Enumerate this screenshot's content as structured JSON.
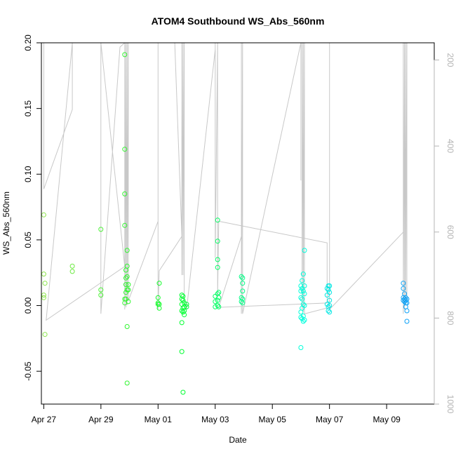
{
  "chart_data": {
    "type": "scatter",
    "title": "ATOM4 Southbound WS_Abs_560nm",
    "xlabel": "Date",
    "ylabel": "WS_Abs_560nm",
    "x_range": [
      "2023-04-26T22:00",
      "2023-05-10T16:00"
    ],
    "ylim": [
      -0.075,
      0.2
    ],
    "x_ticks": [
      {
        "date": "2023-04-27",
        "label": "Apr 27"
      },
      {
        "date": "2023-04-29",
        "label": "Apr 29"
      },
      {
        "date": "2023-05-01",
        "label": "May 01"
      },
      {
        "date": "2023-05-03",
        "label": "May 03"
      },
      {
        "date": "2023-05-05",
        "label": "May 05"
      },
      {
        "date": "2023-05-07",
        "label": "May 07"
      },
      {
        "date": "2023-05-09",
        "label": "May 09"
      }
    ],
    "y_ticks": [
      {
        "value": -0.05,
        "label": "-0.05"
      },
      {
        "value": 0.0,
        "label": "0.00"
      },
      {
        "value": 0.05,
        "label": "0.05"
      },
      {
        "value": 0.1,
        "label": "0.10"
      },
      {
        "value": 0.15,
        "label": "0.15"
      },
      {
        "value": 0.2,
        "label": "0.20"
      }
    ],
    "secondary_axis": {
      "range": [
        1000,
        160
      ],
      "ticks": [
        {
          "value": 200,
          "label": "200"
        },
        {
          "value": 400,
          "label": "400"
        },
        {
          "value": 600,
          "label": "600"
        },
        {
          "value": 800,
          "label": "800"
        },
        {
          "value": 1000,
          "label": "1000"
        }
      ],
      "color": "#b4b4b4"
    },
    "grid": false,
    "legend": "none",
    "point_color_scale": [
      "#8ee44a",
      "#00ff22",
      "#00ffdd",
      "#1188ff"
    ],
    "points": [
      [
        "2023-04-27T00:00",
        0.069
      ],
      [
        "2023-04-27T00:00",
        0.024
      ],
      [
        "2023-04-27T00:00",
        0.008
      ],
      [
        "2023-04-27T00:00",
        0.006
      ],
      [
        "2023-04-27T01:00",
        0.017
      ],
      [
        "2023-04-27T01:00",
        -0.022
      ],
      [
        "2023-04-28T00:00",
        0.03
      ],
      [
        "2023-04-28T00:00",
        0.026
      ],
      [
        "2023-04-29T00:00",
        0.058
      ],
      [
        "2023-04-29T00:00",
        0.012
      ],
      [
        "2023-04-29T00:00",
        0.008
      ],
      [
        "2023-04-29T20:00",
        0.191
      ],
      [
        "2023-04-29T20:00",
        0.119
      ],
      [
        "2023-04-29T20:00",
        0.085
      ],
      [
        "2023-04-29T20:00",
        0.061
      ],
      [
        "2023-04-29T20:00",
        0.005
      ],
      [
        "2023-04-29T20:00",
        0.002
      ],
      [
        "2023-04-29T21:00",
        0.027
      ],
      [
        "2023-04-29T21:00",
        0.021
      ],
      [
        "2023-04-29T21:00",
        0.016
      ],
      [
        "2023-04-29T21:00",
        0.01
      ],
      [
        "2023-04-29T21:00",
        0.005
      ],
      [
        "2023-04-29T22:00",
        0.042
      ],
      [
        "2023-04-29T22:00",
        0.03
      ],
      [
        "2023-04-29T22:00",
        0.022
      ],
      [
        "2023-04-29T22:00",
        0.012
      ],
      [
        "2023-04-29T22:00",
        -0.016
      ],
      [
        "2023-04-29T22:00",
        -0.059
      ],
      [
        "2023-04-29T23:00",
        0.016
      ],
      [
        "2023-04-29T23:00",
        0.012
      ],
      [
        "2023-04-29T23:00",
        0.003
      ],
      [
        "2023-05-01T00:00",
        0.006
      ],
      [
        "2023-05-01T00:00",
        0.002
      ],
      [
        "2023-05-01T00:00",
        0.001
      ],
      [
        "2023-05-01T01:00",
        0.017
      ],
      [
        "2023-05-01T01:00",
        0.001
      ],
      [
        "2023-05-01T01:00",
        -0.002
      ],
      [
        "2023-05-01T20:00",
        0.008
      ],
      [
        "2023-05-01T20:00",
        0.005
      ],
      [
        "2023-05-01T20:00",
        0.001
      ],
      [
        "2023-05-01T20:00",
        -0.004
      ],
      [
        "2023-05-01T20:00",
        -0.013
      ],
      [
        "2023-05-01T20:00",
        -0.035
      ],
      [
        "2023-05-01T21:00",
        0.007
      ],
      [
        "2023-05-01T21:00",
        0.004
      ],
      [
        "2023-05-01T21:00",
        -0.002
      ],
      [
        "2023-05-01T21:00",
        -0.005
      ],
      [
        "2023-05-01T21:00",
        -0.066
      ],
      [
        "2023-05-01T22:00",
        0.002
      ],
      [
        "2023-05-01T22:00",
        -0.001
      ],
      [
        "2023-05-01T22:00",
        -0.004
      ],
      [
        "2023-05-01T22:00",
        -0.007
      ],
      [
        "2023-05-02T00:00",
        0.001
      ],
      [
        "2023-05-02T00:00",
        -0.001
      ],
      [
        "2023-05-03T00:00",
        0.007
      ],
      [
        "2023-05-03T00:00",
        0.003
      ],
      [
        "2023-05-03T00:00",
        -0.001
      ],
      [
        "2023-05-03T02:00",
        0.065
      ],
      [
        "2023-05-03T02:00",
        0.049
      ],
      [
        "2023-05-03T02:00",
        0.035
      ],
      [
        "2023-05-03T02:00",
        0.029
      ],
      [
        "2023-05-03T02:00",
        0.009
      ],
      [
        "2023-05-03T02:00",
        0.004
      ],
      [
        "2023-05-03T02:00",
        0.0
      ],
      [
        "2023-05-03T03:00",
        0.01
      ],
      [
        "2023-05-03T03:00",
        0.006
      ],
      [
        "2023-05-03T03:00",
        -0.001
      ],
      [
        "2023-05-03T22:00",
        0.022
      ],
      [
        "2023-05-03T22:00",
        0.006
      ],
      [
        "2023-05-03T22:00",
        0.003
      ],
      [
        "2023-05-03T23:00",
        0.021
      ],
      [
        "2023-05-03T23:00",
        0.017
      ],
      [
        "2023-05-03T23:00",
        0.011
      ],
      [
        "2023-05-03T23:00",
        0.005
      ],
      [
        "2023-05-03T23:00",
        0.002
      ],
      [
        "2023-05-06T00:00",
        0.015
      ],
      [
        "2023-05-06T00:00",
        0.011
      ],
      [
        "2023-05-06T00:00",
        0.006
      ],
      [
        "2023-05-06T00:00",
        -0.005
      ],
      [
        "2023-05-06T00:00",
        -0.009
      ],
      [
        "2023-05-06T00:00",
        -0.032
      ],
      [
        "2023-05-06T01:00",
        0.019
      ],
      [
        "2023-05-06T01:00",
        0.013
      ],
      [
        "2023-05-06T01:00",
        0.005
      ],
      [
        "2023-05-06T01:00",
        -0.002
      ],
      [
        "2023-05-06T01:00",
        -0.01
      ],
      [
        "2023-05-06T02:00",
        0.024
      ],
      [
        "2023-05-06T02:00",
        0.011
      ],
      [
        "2023-05-06T02:00",
        0.001
      ],
      [
        "2023-05-06T02:00",
        -0.008
      ],
      [
        "2023-05-06T02:00",
        -0.012
      ],
      [
        "2023-05-06T03:00",
        0.042
      ],
      [
        "2023-05-06T03:00",
        0.015
      ],
      [
        "2023-05-06T03:00",
        0.009
      ],
      [
        "2023-05-06T03:00",
        0.0
      ],
      [
        "2023-05-06T03:00",
        -0.011
      ],
      [
        "2023-05-06T22:00",
        0.013
      ],
      [
        "2023-05-06T22:00",
        0.008
      ],
      [
        "2023-05-06T22:00",
        0.001
      ],
      [
        "2023-05-06T23:00",
        0.015
      ],
      [
        "2023-05-06T23:00",
        0.012
      ],
      [
        "2023-05-06T23:00",
        -0.001
      ],
      [
        "2023-05-06T23:00",
        -0.004
      ],
      [
        "2023-05-07T00:00",
        0.015
      ],
      [
        "2023-05-07T00:00",
        0.01
      ],
      [
        "2023-05-07T00:00",
        0.004
      ],
      [
        "2023-05-07T00:00",
        0.0
      ],
      [
        "2023-05-07T00:00",
        -0.005
      ],
      [
        "2023-05-09T14:00",
        0.017
      ],
      [
        "2023-05-09T14:00",
        0.013
      ],
      [
        "2023-05-09T14:00",
        0.006
      ],
      [
        "2023-05-09T14:00",
        0.004
      ],
      [
        "2023-05-09T15:00",
        0.009
      ],
      [
        "2023-05-09T15:00",
        0.005
      ],
      [
        "2023-05-09T15:00",
        0.003
      ],
      [
        "2023-05-09T16:00",
        0.006
      ],
      [
        "2023-05-09T16:00",
        0.004
      ],
      [
        "2023-05-09T16:00",
        0.002
      ],
      [
        "2023-05-09T16:00",
        -0.001
      ],
      [
        "2023-05-09T17:00",
        0.005
      ],
      [
        "2023-05-09T17:00",
        0.002
      ],
      [
        "2023-05-09T17:00",
        -0.004
      ],
      [
        "2023-05-09T17:00",
        -0.012
      ]
    ],
    "secondary_line": [
      [
        "2023-04-27T00:00",
        160
      ],
      [
        "2023-04-27T00:00",
        500
      ],
      [
        "2023-04-28T00:00",
        315
      ],
      [
        "2023-04-28T00:00",
        160
      ],
      [
        "2023-04-28T00:00",
        160
      ],
      [
        "2023-04-27T02:00",
        805
      ],
      [
        "2023-04-29T20:00",
        680
      ],
      [
        "2023-04-29T00:00",
        160
      ],
      [
        "2023-04-29T00:00",
        475
      ],
      [
        "2023-04-29T00:00",
        790
      ],
      [
        "2023-04-29T16:00",
        170
      ],
      [
        "2023-04-29T20:00",
        160
      ],
      [
        "2023-04-29T20:00",
        780
      ],
      [
        "2023-04-29T21:00",
        160
      ],
      [
        "2023-04-29T21:00",
        775
      ],
      [
        "2023-04-29T22:00",
        160
      ],
      [
        "2023-04-29T22:00",
        770
      ],
      [
        "2023-04-29T23:00",
        160
      ],
      [
        "2023-04-29T23:00",
        760
      ],
      [
        "2023-04-29T23:00",
        760
      ],
      [
        "2023-05-01T00:00",
        575
      ],
      [
        "2023-05-01T00:00",
        160
      ],
      [
        "2023-05-01T00:00",
        780
      ],
      [
        "2023-05-01T00:00",
        780
      ],
      [
        "2023-05-01T01:00",
        690
      ],
      [
        "2023-05-01T20:00",
        610
      ],
      [
        "2023-05-01T14:00",
        160
      ],
      [
        "2023-05-01T20:00",
        160
      ],
      [
        "2023-05-01T20:00",
        700
      ],
      [
        "2023-05-01T21:00",
        160
      ],
      [
        "2023-05-01T21:00",
        700
      ],
      [
        "2023-05-01T22:00",
        160
      ],
      [
        "2023-05-01T22:00",
        760
      ],
      [
        "2023-05-01T22:00",
        760
      ],
      [
        "2023-05-02T00:00",
        780
      ],
      [
        "2023-05-03T00:00",
        175
      ],
      [
        "2023-05-03T00:00",
        160
      ],
      [
        "2023-05-03T00:00",
        660
      ],
      [
        "2023-05-03T02:00",
        160
      ],
      [
        "2023-05-03T02:00",
        750
      ],
      [
        "2023-05-03T02:00",
        750
      ],
      [
        "2023-05-03T03:00",
        575
      ],
      [
        "2023-05-06T22:00",
        625
      ],
      [
        "2023-05-06T22:00",
        765
      ],
      [
        "2023-05-06T22:00",
        765
      ],
      [
        "2023-05-03T03:00",
        775
      ],
      [
        "2023-05-03T22:00",
        610
      ],
      [
        "2023-05-03T22:00",
        160
      ],
      [
        "2023-05-03T22:00",
        790
      ],
      [
        "2023-05-03T23:00",
        160
      ],
      [
        "2023-05-03T23:00",
        790
      ],
      [
        "2023-05-06T00:00",
        160
      ],
      [
        "2023-05-06T00:00",
        480
      ],
      [
        "2023-05-06T00:00",
        160
      ],
      [
        "2023-05-06T01:00",
        160
      ],
      [
        "2023-05-06T01:00",
        780
      ],
      [
        "2023-05-06T02:00",
        160
      ],
      [
        "2023-05-06T02:00",
        785
      ],
      [
        "2023-05-06T03:00",
        160
      ],
      [
        "2023-05-06T03:00",
        790
      ],
      [
        "2023-05-06T03:00",
        790
      ],
      [
        "2023-05-07T00:00",
        775
      ],
      [
        "2023-05-07T00:00",
        160
      ],
      [
        "2023-05-07T00:00",
        780
      ],
      [
        "2023-05-07T00:00",
        780
      ],
      [
        "2023-05-09T14:00",
        600
      ],
      [
        "2023-05-09T14:00",
        160
      ],
      [
        "2023-05-09T14:00",
        790
      ],
      [
        "2023-05-09T15:00",
        160
      ],
      [
        "2023-05-09T15:00",
        780
      ],
      [
        "2023-05-09T16:00",
        160
      ],
      [
        "2023-05-09T16:00",
        770
      ],
      [
        "2023-05-09T17:00",
        160
      ],
      [
        "2023-05-09T17:00",
        760
      ]
    ]
  }
}
